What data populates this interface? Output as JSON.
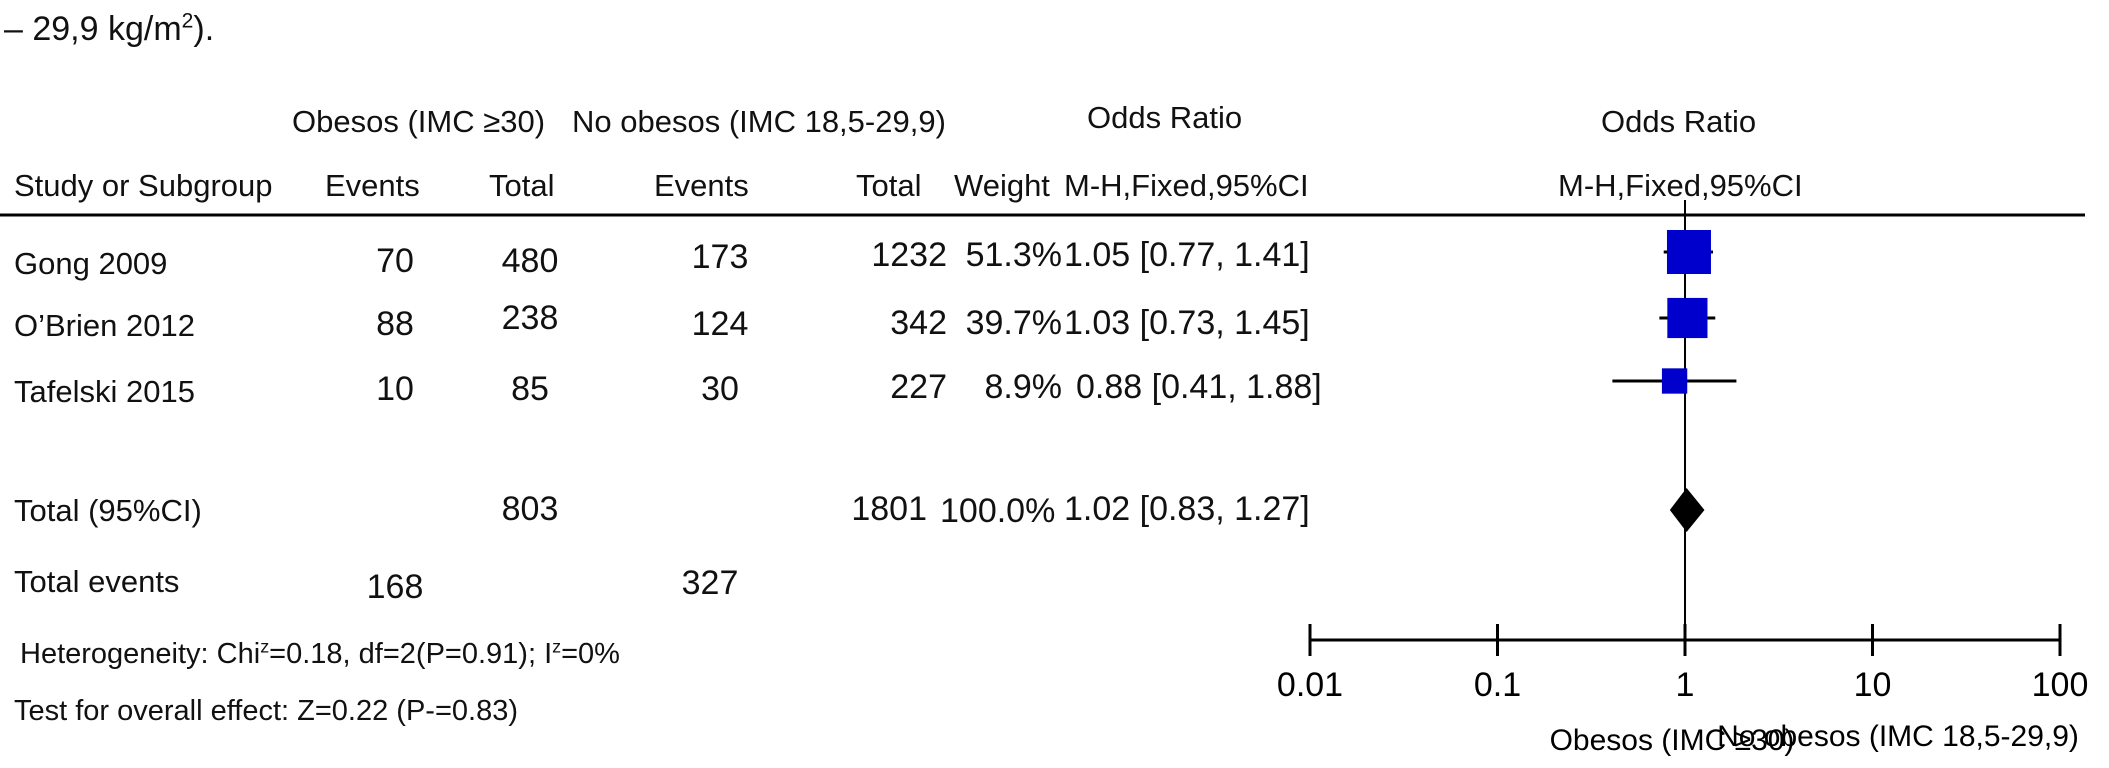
{
  "caption": {
    "prefix": "– 29,9 kg/m",
    "sup": "2",
    "suffix": ")."
  },
  "headers": {
    "group1": "Obesos (IMC ≥30)",
    "group2": "No obesos (IMC 18,5-29,9)",
    "or_text": "Odds Ratio",
    "or_plot": "Odds Ratio",
    "col_study": "Study or Subgroup",
    "col_events1": "Events",
    "col_total1": "Total",
    "col_events2": "Events",
    "col_total2": "Total",
    "col_weight": "Weight",
    "col_method": "M-H,Fixed,95%CI",
    "plot_method": "M-H,Fixed,95%CI"
  },
  "studies": [
    {
      "name": "Gong 2009",
      "events1": "70",
      "total1": "480",
      "events2": "173",
      "total2": "1232",
      "weight": "51.3%",
      "ci_text": "1.05 [0.77, 1.41]"
    },
    {
      "name": "O’Brien 2012",
      "events1": "88",
      "total1": "238",
      "events2": "124",
      "total2": "342",
      "weight": "39.7%",
      "ci_text": "1.03 [0.73, 1.45]"
    },
    {
      "name": "Tafelski 2015",
      "events1": "10",
      "total1": "85",
      "events2": "30",
      "total2": "227",
      "weight": "8.9%",
      "ci_text": "0.88 [0.41, 1.88]"
    }
  ],
  "total": {
    "label": "Total (95%CI)",
    "total1": "803",
    "total2": "1801",
    "weight": "100.0%",
    "ci_text": "1.02 [0.83, 1.27]"
  },
  "total_events": {
    "label": "Total events",
    "events1": "168",
    "events2": "327"
  },
  "heterogeneity": {
    "prefix": "Heterogeneity: Chi",
    "sup1": "z",
    "middle": "=0.18, df=2(P=0.91); I",
    "sup2": "z",
    "suffix": "=0%"
  },
  "overall_effect": "Test for overall effect: Z=0.22 (P-=0.83)",
  "axis": {
    "left_label": "Obesos (IMC ≥30)",
    "right_label": "No obesos (IMC 18,5-29,9)"
  },
  "chart_data": {
    "type": "forest",
    "scale": "log",
    "xlim": [
      0.01,
      100
    ],
    "ticks": [
      0.01,
      0.1,
      1,
      10,
      100
    ],
    "tick_labels": [
      "0.01",
      "0.1",
      "1",
      "10",
      "100"
    ],
    "null_line": 1,
    "series": [
      {
        "name": "Gong 2009",
        "or": 1.05,
        "lower": 0.77,
        "upper": 1.41,
        "weight": 51.3
      },
      {
        "name": "O’Brien 2012",
        "or": 1.03,
        "lower": 0.73,
        "upper": 1.45,
        "weight": 39.7
      },
      {
        "name": "Tafelski 2015",
        "or": 0.88,
        "lower": 0.41,
        "upper": 1.88,
        "weight": 8.9
      }
    ],
    "pooled": {
      "or": 1.02,
      "lower": 0.83,
      "upper": 1.27
    },
    "colors": {
      "study_marker": "#0000cc",
      "pooled_marker": "#000000",
      "lines": "#000000"
    }
  }
}
